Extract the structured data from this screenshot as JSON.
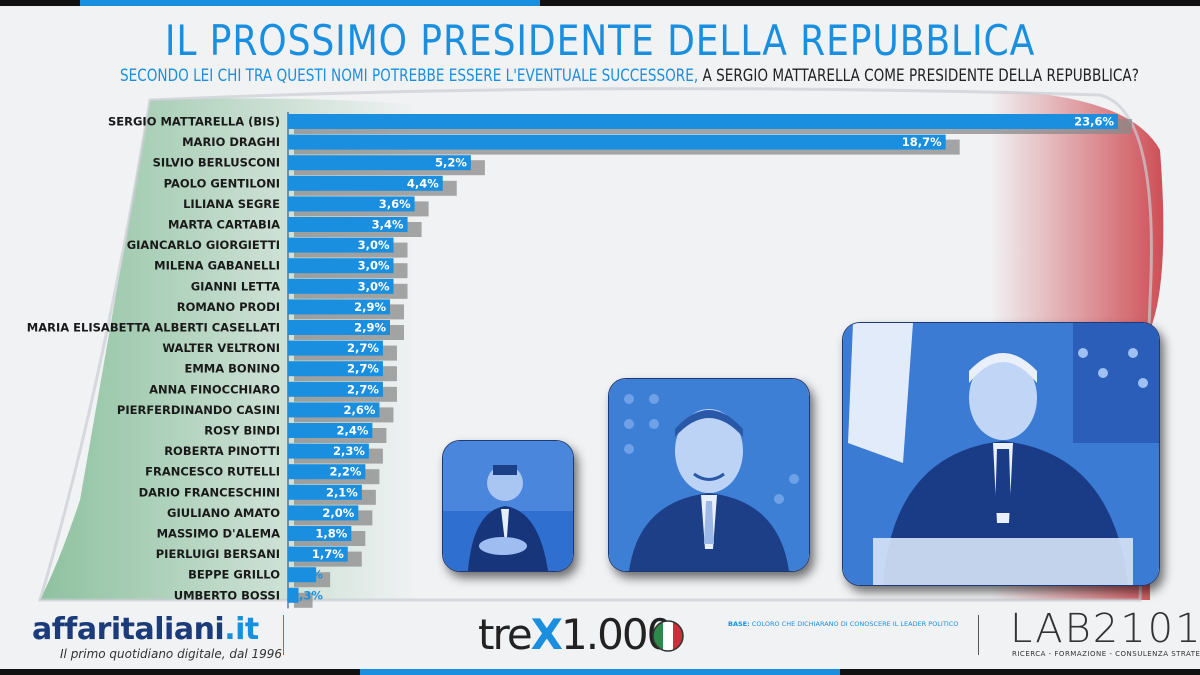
{
  "header": {
    "title": "IL PROSSIMO PRESIDENTE DELLA REPUBBLICA",
    "subtitle_part1": "SECONDO LEI CHI TRA QUESTI NOMI POTREBBE ESSERE L'EVENTUALE SUCCESSORE,",
    "subtitle_part2": "A SERGIO MATTARELLA COME PRESIDENTE DELLA REPUBBLICA?"
  },
  "colors": {
    "accent": "#1a8fe0",
    "bar": "#1a8fe0",
    "bar_shadow": "#8a8a8a",
    "flag_green": "#3d9a5a",
    "flag_red": "#c8323a",
    "dark_blue": "#1b3b7a"
  },
  "chart_data": {
    "type": "bar",
    "orientation": "horizontal",
    "categories": [
      "SERGIO MATTARELLA (BIS)",
      "MARIO DRAGHI",
      "SILVIO BERLUSCONI",
      "PAOLO GENTILONI",
      "LILIANA SEGRE",
      "MARTA CARTABIA",
      "GIANCARLO GIORGIETTI",
      "MILENA GABANELLI",
      "GIANNI LETTA",
      "ROMANO PRODI",
      "MARIA ELISABETTA ALBERTI CASELLATI",
      "WALTER VELTRONI",
      "EMMA BONINO",
      "ANNA FINOCCHIARO",
      "PIERFERDINANDO CASINI",
      "ROSY BINDI",
      "ROBERTA PINOTTI",
      "FRANCESCO RUTELLI",
      "DARIO FRANCESCHINI",
      "GIULIANO AMATO",
      "MASSIMO D'ALEMA",
      "PIERLUIGI BERSANI",
      "BEPPE GRILLO",
      "UMBERTO BOSSI"
    ],
    "values": [
      23.6,
      18.7,
      5.2,
      4.4,
      3.6,
      3.4,
      3.0,
      3.0,
      3.0,
      2.9,
      2.9,
      2.7,
      2.7,
      2.7,
      2.6,
      2.4,
      2.3,
      2.2,
      2.1,
      2.0,
      1.8,
      1.7,
      0.8,
      0.3
    ],
    "value_labels": [
      "23,6%",
      "18,7%",
      "5,2%",
      "4,4%",
      "3,6%",
      "3,4%",
      "3,0%",
      "3,0%",
      "3,0%",
      "2,9%",
      "2,9%",
      "2,7%",
      "2,7%",
      "2,7%",
      "2,6%",
      "2,4%",
      "2,3%",
      "2,2%",
      "2,1%",
      "2,0%",
      "1,8%",
      "1,7%",
      "0,8%",
      "0,3%"
    ],
    "xlim": [
      0,
      23.6
    ],
    "grid": false,
    "legend": "none"
  },
  "photos": [
    {
      "subject": "silvio-berlusconi-photo"
    },
    {
      "subject": "mario-draghi-photo"
    },
    {
      "subject": "sergio-mattarella-photo"
    }
  ],
  "footer": {
    "logo_main": "affaritaliani",
    "logo_dot": ".it",
    "tagline": "Il primo quotidiano digitale, dal 1996",
    "trex_pre": "tre",
    "trex_x": "X",
    "trex_post": "1.000",
    "base_label": "BASE:",
    "base_text": "COLORO CHE DICHIARANO DI CONOSCERE IL LEADER POLITICO",
    "lab_logo": "LAB2101",
    "lab_sub": "RICERCA - FORMAZIONE - CONSULENZA STRATEGICA"
  }
}
